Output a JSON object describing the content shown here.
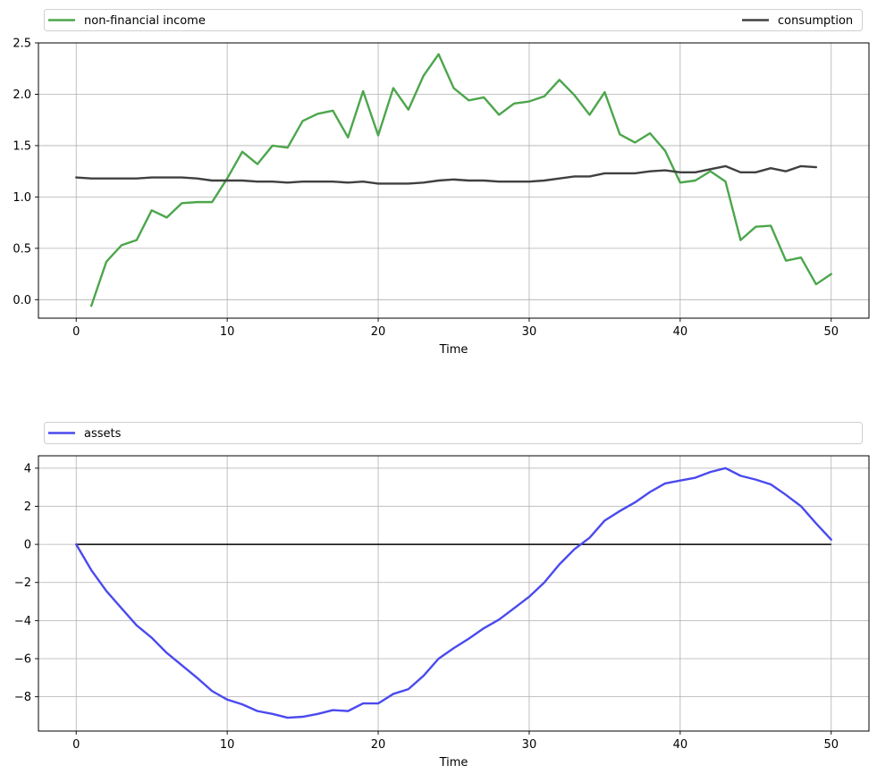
{
  "chart_data": [
    {
      "type": "line",
      "title": "",
      "xlabel": "Time",
      "ylabel": "",
      "xlim": [
        -2.5,
        52.5
      ],
      "ylim": [
        -0.18,
        2.5
      ],
      "xticks": [
        0,
        10,
        20,
        30,
        40,
        50
      ],
      "xtick_labels": [
        "0",
        "10",
        "20",
        "30",
        "40",
        "50"
      ],
      "yticks": [
        0.0,
        0.5,
        1.0,
        1.5,
        2.0,
        2.5
      ],
      "ytick_labels": [
        "0.0",
        "0.5",
        "1.0",
        "1.5",
        "2.0",
        "2.5"
      ],
      "grid": true,
      "legend": {
        "placement": "above-plot",
        "entries": [
          "non-financial income",
          "consumption"
        ]
      },
      "series": [
        {
          "name": "non-financial income",
          "color": "#4ca64c",
          "x": [
            1,
            2,
            3,
            4,
            5,
            6,
            7,
            8,
            9,
            10,
            11,
            12,
            13,
            14,
            15,
            16,
            17,
            18,
            19,
            20,
            21,
            22,
            23,
            24,
            25,
            26,
            27,
            28,
            29,
            30,
            31,
            32,
            33,
            34,
            35,
            36,
            37,
            38,
            39,
            40,
            41,
            42,
            43,
            44,
            45,
            46,
            47,
            48,
            49,
            50
          ],
          "values": [
            -0.06,
            0.37,
            0.53,
            0.58,
            0.87,
            0.8,
            0.94,
            0.95,
            0.95,
            1.18,
            1.44,
            1.32,
            1.5,
            1.48,
            1.74,
            1.81,
            1.84,
            1.58,
            2.03,
            1.6,
            2.06,
            1.85,
            2.18,
            2.39,
            2.06,
            1.94,
            1.97,
            1.8,
            1.91,
            1.93,
            1.98,
            2.14,
            1.99,
            1.8,
            2.02,
            1.61,
            1.53,
            1.62,
            1.45,
            1.14,
            1.16,
            1.25,
            1.15,
            0.58,
            0.71,
            0.72,
            0.38,
            0.41,
            0.15,
            0.25
          ]
        },
        {
          "name": "consumption",
          "color": "#404040",
          "x": [
            0,
            1,
            2,
            3,
            4,
            5,
            6,
            7,
            8,
            9,
            10,
            11,
            12,
            13,
            14,
            15,
            16,
            17,
            18,
            19,
            20,
            21,
            22,
            23,
            24,
            25,
            26,
            27,
            28,
            29,
            30,
            31,
            32,
            33,
            34,
            35,
            36,
            37,
            38,
            39,
            40,
            41,
            42,
            43,
            44,
            45,
            46,
            47,
            48,
            49
          ],
          "values": [
            1.19,
            1.18,
            1.18,
            1.18,
            1.18,
            1.19,
            1.19,
            1.19,
            1.18,
            1.16,
            1.16,
            1.16,
            1.15,
            1.15,
            1.14,
            1.15,
            1.15,
            1.15,
            1.14,
            1.15,
            1.13,
            1.13,
            1.13,
            1.14,
            1.16,
            1.17,
            1.16,
            1.16,
            1.15,
            1.15,
            1.15,
            1.16,
            1.18,
            1.2,
            1.2,
            1.23,
            1.23,
            1.23,
            1.25,
            1.26,
            1.24,
            1.24,
            1.27,
            1.3,
            1.24,
            1.24,
            1.28,
            1.25,
            1.3,
            1.29
          ]
        }
      ]
    },
    {
      "type": "line",
      "title": "",
      "xlabel": "Time",
      "ylabel": "",
      "xlim": [
        -2.5,
        52.5
      ],
      "ylim": [
        -9.8,
        4.65
      ],
      "xticks": [
        0,
        10,
        20,
        30,
        40,
        50
      ],
      "xtick_labels": [
        "0",
        "10",
        "20",
        "30",
        "40",
        "50"
      ],
      "yticks": [
        -8,
        -6,
        -4,
        -2,
        0,
        2,
        4
      ],
      "ytick_labels": [
        "−8",
        "−6",
        "−4",
        "−2",
        "0",
        "2",
        "4"
      ],
      "grid": true,
      "legend": {
        "placement": "above-plot",
        "entries": [
          "assets"
        ]
      },
      "reference_line": {
        "y": 0,
        "x_from": 0,
        "x_to": 50,
        "color": "#000000"
      },
      "series": [
        {
          "name": "assets",
          "color": "#4a4aef",
          "x": [
            0,
            1,
            2,
            3,
            4,
            5,
            6,
            7,
            8,
            9,
            10,
            11,
            12,
            13,
            14,
            15,
            16,
            17,
            18,
            19,
            20,
            21,
            22,
            23,
            24,
            25,
            26,
            27,
            28,
            29,
            30,
            31,
            32,
            33,
            34,
            35,
            36,
            37,
            38,
            39,
            40,
            41,
            42,
            43,
            44,
            45,
            46,
            47,
            48,
            49,
            50
          ],
          "values": [
            0.0,
            -1.35,
            -2.45,
            -3.35,
            -4.25,
            -4.9,
            -5.7,
            -6.35,
            -7.0,
            -7.7,
            -8.15,
            -8.4,
            -8.75,
            -8.9,
            -9.1,
            -9.05,
            -8.9,
            -8.7,
            -8.75,
            -8.35,
            -8.35,
            -7.85,
            -7.6,
            -6.9,
            -6.0,
            -5.45,
            -4.95,
            -4.4,
            -3.95,
            -3.35,
            -2.75,
            -2.0,
            -1.05,
            -0.25,
            0.35,
            1.25,
            1.75,
            2.2,
            2.75,
            3.2,
            3.35,
            3.5,
            3.8,
            4.0,
            3.6,
            3.4,
            3.15,
            2.6,
            2.0,
            1.1,
            0.25
          ]
        }
      ]
    }
  ]
}
